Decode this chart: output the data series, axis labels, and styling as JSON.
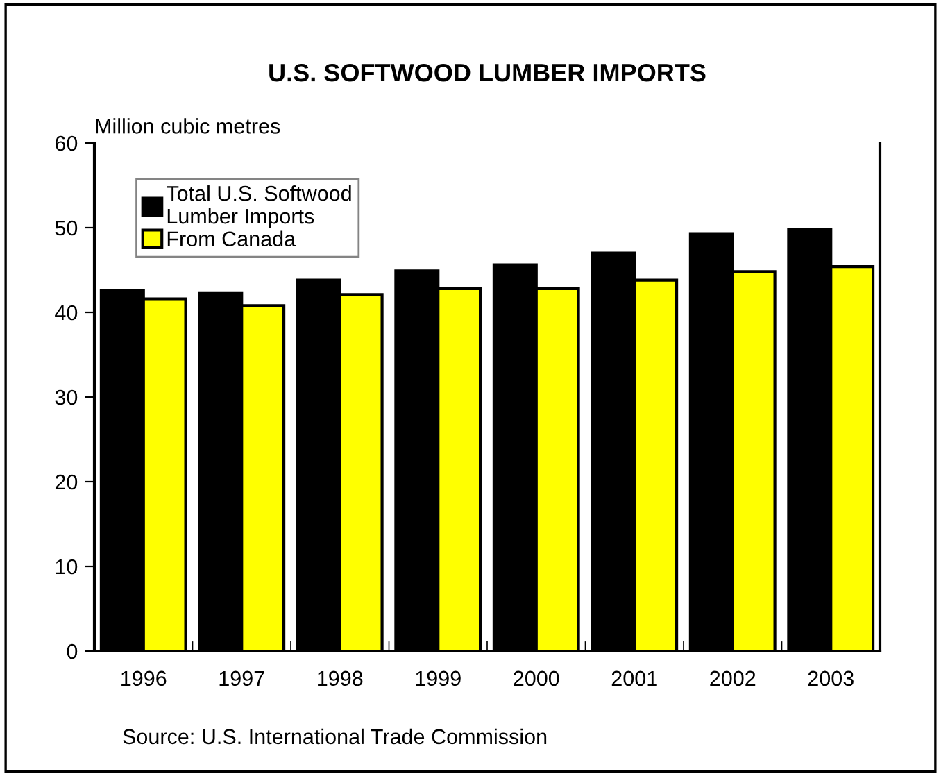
{
  "chart_data": {
    "type": "bar",
    "title": "U.S. SOFTWOOD LUMBER IMPORTS",
    "ylabel": "Million cubic metres",
    "categories": [
      "1996",
      "1997",
      "1998",
      "1999",
      "2000",
      "2001",
      "2002",
      "2003"
    ],
    "series": [
      {
        "name": "Total U.S. Softwood\nLumber Imports",
        "color": "#000000",
        "values": [
          42.6,
          42.3,
          43.8,
          44.9,
          45.6,
          47.0,
          49.3,
          49.8
        ]
      },
      {
        "name": "From Canada",
        "color": "#ffff00",
        "values": [
          41.6,
          40.8,
          42.1,
          42.8,
          42.8,
          43.8,
          44.8,
          45.4
        ]
      }
    ],
    "ylim": [
      0,
      60
    ],
    "yticks": [
      0,
      10,
      20,
      30,
      40,
      50,
      60
    ],
    "grid": false,
    "legend": "top left",
    "annotations": [
      "Source: U.S. International Trade Commission"
    ]
  }
}
